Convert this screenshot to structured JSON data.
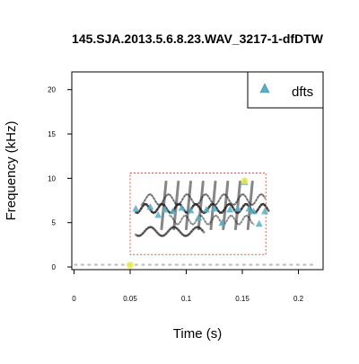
{
  "chart_data": {
    "type": "scatter",
    "title": "145.SJA.2013.5.6.8.23.WAV_3217-1-dfDTW",
    "xlabel": "Time (s)",
    "ylabel": "Frequency (kHz)",
    "xlim": [
      -0.002,
      0.222
    ],
    "ylim": [
      -0.3,
      22.0
    ],
    "x_ticks": [
      0,
      0.05,
      0.1,
      0.15,
      0.2
    ],
    "x_tick_labels": [
      "0",
      "0.05",
      "0.1",
      "0.15",
      "0.2"
    ],
    "y_ticks": [
      0,
      5,
      10,
      15,
      20
    ],
    "y_tick_labels": [
      "0",
      "5",
      "10",
      "15",
      "20"
    ],
    "grid": false,
    "legend": {
      "position": "top-right",
      "entries": [
        "dfts"
      ]
    },
    "background": "spectrogram",
    "selection_box": {
      "x": [
        0.05,
        0.171
      ],
      "y": [
        1.4,
        10.6
      ],
      "color": "#e05050"
    },
    "colors": {
      "dfts": "#5aaec4",
      "highlight": "#e8e84a",
      "spectrogram": "#222222"
    },
    "series": [
      {
        "name": "dfts",
        "marker": "triangle",
        "x": [
          0.055,
          0.068,
          0.075,
          0.081,
          0.088,
          0.096,
          0.104,
          0.111,
          0.118,
          0.125,
          0.132,
          0.139,
          0.146,
          0.152,
          0.156,
          0.16,
          0.165,
          0.17
        ],
        "y": [
          6.6,
          6.8,
          5.9,
          6.5,
          6.3,
          6.7,
          6.4,
          5.6,
          6.5,
          6.6,
          5.0,
          6.5,
          6.6,
          9.6,
          6.6,
          6.3,
          4.9,
          6.3
        ]
      }
    ],
    "highlights": [
      {
        "x": 0.05,
        "y": 0.2
      },
      {
        "x": 0.152,
        "y": 9.7
      }
    ]
  }
}
